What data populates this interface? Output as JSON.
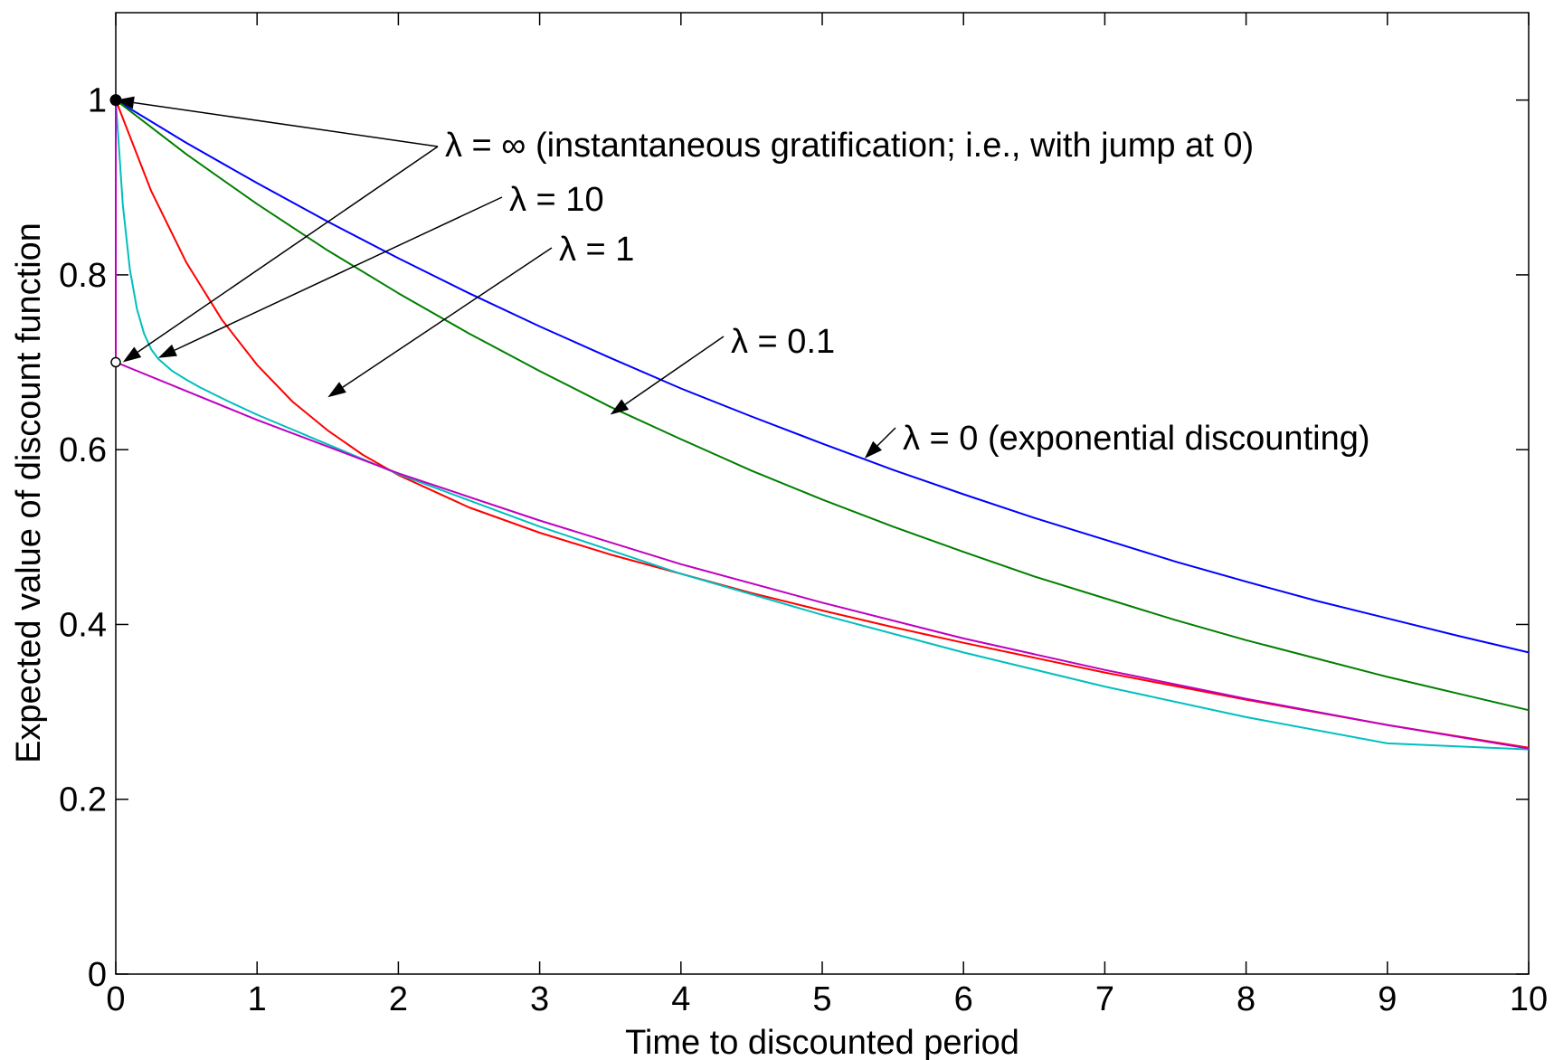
{
  "chart_data": {
    "type": "line",
    "xlabel": "Time to discounted period",
    "ylabel": "Expected value of discount function",
    "xlim": [
      0,
      10
    ],
    "ylim": [
      0,
      1.1
    ],
    "grid": false,
    "x_ticks": [
      "0",
      "1",
      "2",
      "3",
      "4",
      "5",
      "6",
      "7",
      "8",
      "9",
      "10"
    ],
    "y_ticks": [
      "0",
      "0.2",
      "0.4",
      "0.6",
      "0.8",
      "1"
    ],
    "series": [
      {
        "lambda": "0",
        "color": "#0000ff",
        "x": [
          0,
          0.5,
          1,
          1.5,
          2,
          2.5,
          3,
          3.5,
          4,
          4.5,
          5,
          5.5,
          6,
          6.5,
          7,
          7.5,
          8,
          8.5,
          9,
          9.5,
          10
        ],
        "y": [
          1,
          0.951,
          0.905,
          0.861,
          0.819,
          0.779,
          0.741,
          0.705,
          0.67,
          0.638,
          0.607,
          0.577,
          0.549,
          0.522,
          0.497,
          0.472,
          0.449,
          0.427,
          0.407,
          0.387,
          0.368
        ]
      },
      {
        "lambda": "0.1",
        "color": "#007f00",
        "x": [
          0,
          0.5,
          1,
          1.5,
          2,
          2.5,
          3,
          3.5,
          4,
          4.5,
          5,
          5.5,
          6,
          6.5,
          7,
          7.5,
          8,
          8.5,
          9,
          9.5,
          10
        ],
        "y": [
          1,
          0.938,
          0.881,
          0.828,
          0.779,
          0.733,
          0.69,
          0.649,
          0.612,
          0.576,
          0.543,
          0.512,
          0.483,
          0.455,
          0.43,
          0.405,
          0.382,
          0.361,
          0.34,
          0.321,
          0.302
        ]
      },
      {
        "lambda": "1",
        "color": "#ff0000",
        "x": [
          0,
          0.25,
          0.5,
          0.75,
          1,
          1.25,
          1.5,
          1.75,
          2,
          2.5,
          3,
          3.5,
          4,
          4.5,
          5,
          5.5,
          6,
          7,
          8,
          9,
          10
        ],
        "y": [
          1,
          0.896,
          0.814,
          0.749,
          0.697,
          0.655,
          0.622,
          0.594,
          0.571,
          0.534,
          0.505,
          0.48,
          0.458,
          0.436,
          0.416,
          0.397,
          0.379,
          0.345,
          0.314,
          0.285,
          0.259
        ]
      },
      {
        "lambda": "10",
        "color": "#00bfbf",
        "x": [
          0,
          0.05,
          0.1,
          0.15,
          0.2,
          0.25,
          0.3,
          0.4,
          0.5,
          0.6,
          0.8,
          1,
          2,
          3,
          4,
          5,
          6,
          7,
          8,
          9,
          10
        ],
        "y": [
          1,
          0.88,
          0.806,
          0.761,
          0.733,
          0.715,
          0.704,
          0.69,
          0.68,
          0.671,
          0.655,
          0.64,
          0.572,
          0.512,
          0.458,
          0.411,
          0.368,
          0.329,
          0.294,
          0.264,
          0.257
        ]
      },
      {
        "lambda": "∞",
        "color": "#bf00bf",
        "x": [
          0,
          0,
          1,
          2,
          3,
          4,
          5,
          6,
          7,
          8,
          9,
          10
        ],
        "y": [
          1,
          0.7,
          0.634,
          0.573,
          0.519,
          0.469,
          0.425,
          0.384,
          0.348,
          0.315,
          0.285,
          0.258
        ]
      }
    ],
    "markers": {
      "filled": {
        "x": 0,
        "y": 1
      },
      "open": {
        "x": 0,
        "y": 0.7
      }
    },
    "annotations": [
      {
        "text": "λ = ∞ (instantaneous gratification; i.e., with jump at 0)",
        "points_to": [
          {
            "x": 0,
            "y": 1
          },
          {
            "x": 0.05,
            "y": 0.7
          }
        ]
      },
      {
        "text": "λ = 10",
        "points_to": [
          {
            "x": 0.3,
            "y": 0.705
          }
        ]
      },
      {
        "text": "λ = 1",
        "points_to": [
          {
            "x": 1.5,
            "y": 0.66
          }
        ]
      },
      {
        "text": "λ = 0.1",
        "points_to": [
          {
            "x": 3.5,
            "y": 0.64
          }
        ]
      },
      {
        "text": "λ = 0 (exponential discounting)",
        "points_to": [
          {
            "x": 5.3,
            "y": 0.59
          }
        ]
      }
    ]
  }
}
